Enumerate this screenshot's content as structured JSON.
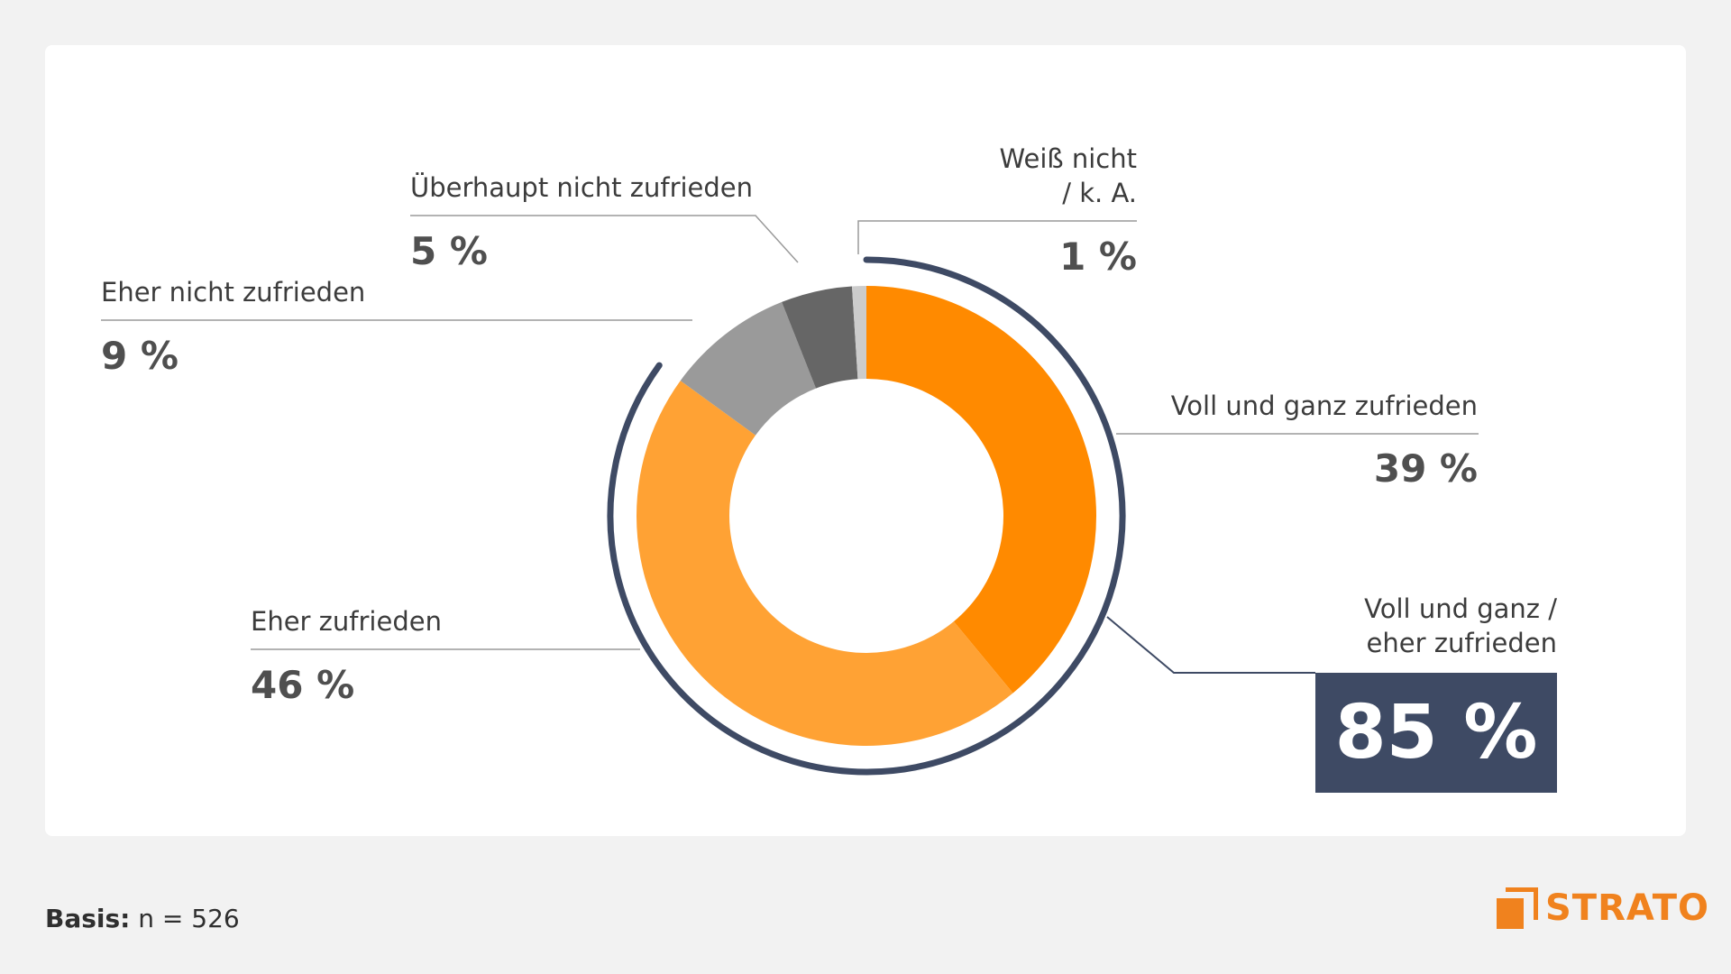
{
  "chart_data": {
    "type": "pie",
    "donut": true,
    "slices": [
      {
        "label": "Voll und ganz zufrieden",
        "value": 39,
        "display": "39 %",
        "color": "#ff8a00"
      },
      {
        "label": "Eher zufrieden",
        "value": 46,
        "display": "46 %",
        "color": "#ffa234"
      },
      {
        "label": "Eher nicht zufrieden",
        "value": 9,
        "display": "9 %",
        "color": "#9a9a9a"
      },
      {
        "label": "Überhaupt nicht zufrieden",
        "value": 5,
        "display": "5 %",
        "color": "#666666"
      },
      {
        "label": "Weiß nicht\n/ k. A.",
        "value": 1,
        "display": "1 %",
        "color": "#cccccc"
      }
    ],
    "summary": {
      "label": "Voll und ganz /\neher zufrieden",
      "display": "85 %",
      "value": 85,
      "color": "#3e4a64"
    }
  },
  "footer": {
    "basis_label": "Basis:",
    "basis_value": "n = 526"
  },
  "logo": {
    "text": "STRATO",
    "color": "#f0821e"
  }
}
